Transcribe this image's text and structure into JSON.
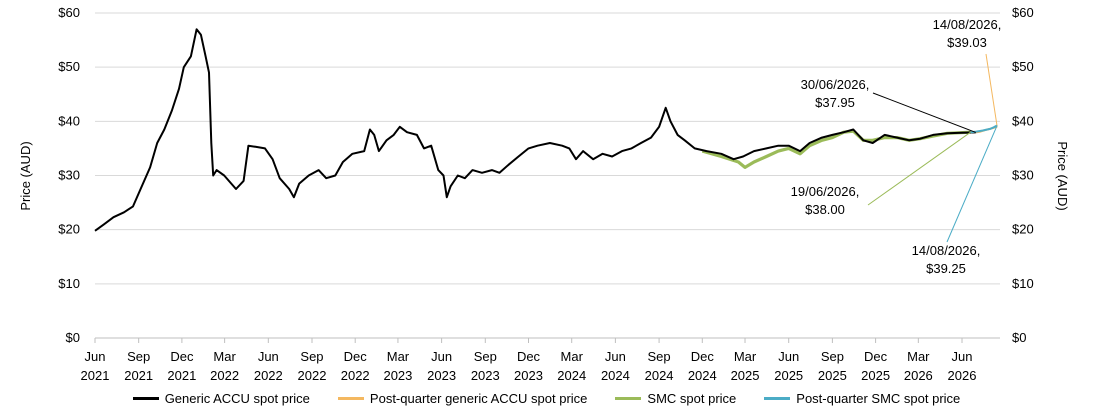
{
  "chart_data": {
    "type": "line",
    "title": "",
    "ylabel_left": "Price (AUD)",
    "ylabel_right": "Price (AUD)",
    "ylim": [
      0,
      60
    ],
    "y_ticks": [
      "$0",
      "$10",
      "$20",
      "$30",
      "$40",
      "$50",
      "$60"
    ],
    "y_tick_values": [
      0,
      10,
      20,
      30,
      40,
      50,
      60
    ],
    "grid": true,
    "legend_position": "bottom",
    "x_ticks": [
      {
        "month": "Jun",
        "year": "2021",
        "date": "2021-06-01"
      },
      {
        "month": "Sep",
        "year": "2021",
        "date": "2021-09-01"
      },
      {
        "month": "Dec",
        "year": "2021",
        "date": "2021-12-01"
      },
      {
        "month": "Mar",
        "year": "2022",
        "date": "2022-03-01"
      },
      {
        "month": "Jun",
        "year": "2022",
        "date": "2022-06-01"
      },
      {
        "month": "Sep",
        "year": "2022",
        "date": "2022-09-01"
      },
      {
        "month": "Dec",
        "year": "2022",
        "date": "2022-12-01"
      },
      {
        "month": "Mar",
        "year": "2023",
        "date": "2023-03-01"
      },
      {
        "month": "Jun",
        "year": "2023",
        "date": "2023-06-01"
      },
      {
        "month": "Sep",
        "year": "2023",
        "date": "2023-09-01"
      },
      {
        "month": "Dec",
        "year": "2023",
        "date": "2023-12-01"
      },
      {
        "month": "Mar",
        "year": "2024",
        "date": "2024-03-01"
      },
      {
        "month": "Jun",
        "year": "2024",
        "date": "2024-06-01"
      },
      {
        "month": "Sep",
        "year": "2024",
        "date": "2024-09-01"
      },
      {
        "month": "Dec",
        "year": "2024",
        "date": "2024-12-01"
      },
      {
        "month": "Mar",
        "year": "2025",
        "date": "2025-03-01"
      },
      {
        "month": "Jun",
        "year": "2025",
        "date": "2025-06-01"
      },
      {
        "month": "Sep",
        "year": "2025",
        "date": "2025-09-01"
      },
      {
        "month": "Dec",
        "year": "2025",
        "date": "2025-12-01"
      },
      {
        "month": "Mar",
        "year": "2026",
        "date": "2026-03-01"
      },
      {
        "month": "Jun",
        "year": "2026",
        "date": "2026-06-01"
      }
    ],
    "xlim": [
      "2021-06-01",
      "2026-08-20"
    ],
    "series": [
      {
        "name": "Generic ACCU spot price",
        "color": "#000000",
        "points": [
          [
            "2021-06-01",
            19.8
          ],
          [
            "2021-06-20",
            21.0
          ],
          [
            "2021-07-10",
            22.3
          ],
          [
            "2021-08-01",
            23.2
          ],
          [
            "2021-08-20",
            24.3
          ],
          [
            "2021-09-05",
            27.5
          ],
          [
            "2021-09-25",
            31.5
          ],
          [
            "2021-10-10",
            36.0
          ],
          [
            "2021-10-25",
            38.5
          ],
          [
            "2021-11-10",
            42.0
          ],
          [
            "2021-11-25",
            46.0
          ],
          [
            "2021-12-05",
            50.0
          ],
          [
            "2021-12-20",
            52.0
          ],
          [
            "2022-01-01",
            57.0
          ],
          [
            "2022-01-10",
            56.0
          ],
          [
            "2022-01-20",
            52.0
          ],
          [
            "2022-01-27",
            49.0
          ],
          [
            "2022-02-01",
            36.0
          ],
          [
            "2022-02-05",
            30.0
          ],
          [
            "2022-02-12",
            31.0
          ],
          [
            "2022-02-28",
            30.0
          ],
          [
            "2022-03-15",
            28.5
          ],
          [
            "2022-03-25",
            27.5
          ],
          [
            "2022-04-10",
            29.0
          ],
          [
            "2022-04-20",
            35.5
          ],
          [
            "2022-05-05",
            35.3
          ],
          [
            "2022-05-25",
            35.0
          ],
          [
            "2022-06-10",
            33.0
          ],
          [
            "2022-06-25",
            29.5
          ],
          [
            "2022-07-15",
            27.5
          ],
          [
            "2022-07-25",
            26.0
          ],
          [
            "2022-08-05",
            28.5
          ],
          [
            "2022-08-25",
            30.0
          ],
          [
            "2022-09-15",
            31.0
          ],
          [
            "2022-10-01",
            29.5
          ],
          [
            "2022-10-20",
            30.0
          ],
          [
            "2022-11-05",
            32.5
          ],
          [
            "2022-11-25",
            34.0
          ],
          [
            "2022-12-20",
            34.5
          ],
          [
            "2023-01-01",
            38.5
          ],
          [
            "2023-01-10",
            37.5
          ],
          [
            "2023-01-20",
            34.5
          ],
          [
            "2023-02-05",
            36.5
          ],
          [
            "2023-02-20",
            37.5
          ],
          [
            "2023-03-05",
            39.0
          ],
          [
            "2023-03-20",
            38.0
          ],
          [
            "2023-04-10",
            37.5
          ],
          [
            "2023-04-25",
            35.0
          ],
          [
            "2023-05-10",
            35.5
          ],
          [
            "2023-05-25",
            31.0
          ],
          [
            "2023-06-05",
            30.0
          ],
          [
            "2023-06-12",
            26.0
          ],
          [
            "2023-06-20",
            28.0
          ],
          [
            "2023-07-05",
            30.0
          ],
          [
            "2023-07-20",
            29.5
          ],
          [
            "2023-08-05",
            31.0
          ],
          [
            "2023-08-25",
            30.5
          ],
          [
            "2023-09-15",
            31.0
          ],
          [
            "2023-10-01",
            30.5
          ],
          [
            "2023-10-20",
            32.0
          ],
          [
            "2023-11-10",
            33.5
          ],
          [
            "2023-12-01",
            35.0
          ],
          [
            "2023-12-20",
            35.5
          ],
          [
            "2024-01-15",
            36.0
          ],
          [
            "2024-02-10",
            35.5
          ],
          [
            "2024-02-25",
            35.0
          ],
          [
            "2024-03-10",
            33.0
          ],
          [
            "2024-03-25",
            34.5
          ],
          [
            "2024-04-15",
            33.0
          ],
          [
            "2024-05-05",
            34.0
          ],
          [
            "2024-05-25",
            33.5
          ],
          [
            "2024-06-15",
            34.5
          ],
          [
            "2024-07-05",
            35.0
          ],
          [
            "2024-07-25",
            36.0
          ],
          [
            "2024-08-15",
            37.0
          ],
          [
            "2024-09-01",
            39.0
          ],
          [
            "2024-09-15",
            42.5
          ],
          [
            "2024-09-25",
            40.0
          ],
          [
            "2024-10-10",
            37.5
          ],
          [
            "2024-10-25",
            36.5
          ],
          [
            "2024-11-15",
            35.0
          ],
          [
            "2024-12-10",
            34.5
          ],
          [
            "2025-01-10",
            34.0
          ],
          [
            "2025-02-05",
            33.0
          ],
          [
            "2025-02-25",
            33.5
          ],
          [
            "2025-03-20",
            34.5
          ],
          [
            "2025-04-15",
            35.0
          ],
          [
            "2025-05-10",
            35.5
          ],
          [
            "2025-06-01",
            35.5
          ],
          [
            "2025-06-25",
            34.5
          ],
          [
            "2025-07-15",
            36.0
          ],
          [
            "2025-08-10",
            37.0
          ],
          [
            "2025-09-01",
            37.5
          ],
          [
            "2025-09-25",
            38.0
          ],
          [
            "2025-10-15",
            38.5
          ],
          [
            "2025-11-05",
            36.5
          ],
          [
            "2025-11-25",
            36.0
          ],
          [
            "2025-12-20",
            37.5
          ],
          [
            "2026-01-15",
            37.0
          ],
          [
            "2026-02-10",
            36.5
          ],
          [
            "2026-03-05",
            36.8
          ],
          [
            "2026-04-01",
            37.5
          ],
          [
            "2026-05-01",
            37.8
          ],
          [
            "2026-06-01",
            37.9
          ],
          [
            "2026-06-30",
            37.95
          ]
        ]
      },
      {
        "name": "Post-quarter generic ACCU spot price",
        "color": "#f4b860",
        "points": [
          [
            "2026-06-30",
            37.95
          ],
          [
            "2026-07-10",
            38.1
          ],
          [
            "2026-07-20",
            38.4
          ],
          [
            "2026-07-30",
            38.6
          ],
          [
            "2026-08-07",
            38.8
          ],
          [
            "2026-08-14",
            39.03
          ]
        ]
      },
      {
        "name": "SMC spot price",
        "color": "#9bbb59",
        "points": [
          [
            "2024-12-01",
            34.5
          ],
          [
            "2025-01-10",
            33.5
          ],
          [
            "2025-02-15",
            32.5
          ],
          [
            "2025-03-01",
            31.5
          ],
          [
            "2025-03-20",
            32.5
          ],
          [
            "2025-04-15",
            33.5
          ],
          [
            "2025-05-10",
            34.5
          ],
          [
            "2025-06-01",
            35.0
          ],
          [
            "2025-06-25",
            34.0
          ],
          [
            "2025-07-15",
            35.5
          ],
          [
            "2025-08-10",
            36.5
          ],
          [
            "2025-09-01",
            37.0
          ],
          [
            "2025-09-25",
            38.0
          ],
          [
            "2025-10-15",
            38.2
          ],
          [
            "2025-11-05",
            36.5
          ],
          [
            "2025-11-25",
            36.5
          ],
          [
            "2025-12-20",
            37.0
          ],
          [
            "2026-01-15",
            37.0
          ],
          [
            "2026-02-10",
            36.5
          ],
          [
            "2026-03-05",
            36.8
          ],
          [
            "2026-04-01",
            37.3
          ],
          [
            "2026-05-01",
            37.8
          ],
          [
            "2026-06-19",
            38.0
          ]
        ]
      },
      {
        "name": "Post-quarter SMC spot price",
        "color": "#4bacc6",
        "points": [
          [
            "2026-06-19",
            38.0
          ],
          [
            "2026-07-01",
            38.1
          ],
          [
            "2026-07-15",
            38.3
          ],
          [
            "2026-07-30",
            38.6
          ],
          [
            "2026-08-07",
            38.9
          ],
          [
            "2026-08-14",
            39.25
          ]
        ]
      }
    ],
    "annotations": [
      {
        "id": "a1",
        "line1": "14/08/2026,",
        "line2": "$39.03",
        "date": "2026-08-14",
        "value": 39.03,
        "color": "#f4b860"
      },
      {
        "id": "a2",
        "line1": "30/06/2026,",
        "line2": "$37.95",
        "date": "2026-06-30",
        "value": 37.95,
        "color": "#000000"
      },
      {
        "id": "a3",
        "line1": "19/06/2026,",
        "line2": "$38.00",
        "date": "2026-06-19",
        "value": 38.0,
        "color": "#9bbb59"
      },
      {
        "id": "a4",
        "line1": "14/08/2026,",
        "line2": "$39.25",
        "date": "2026-08-14",
        "value": 39.25,
        "color": "#4bacc6"
      }
    ]
  }
}
